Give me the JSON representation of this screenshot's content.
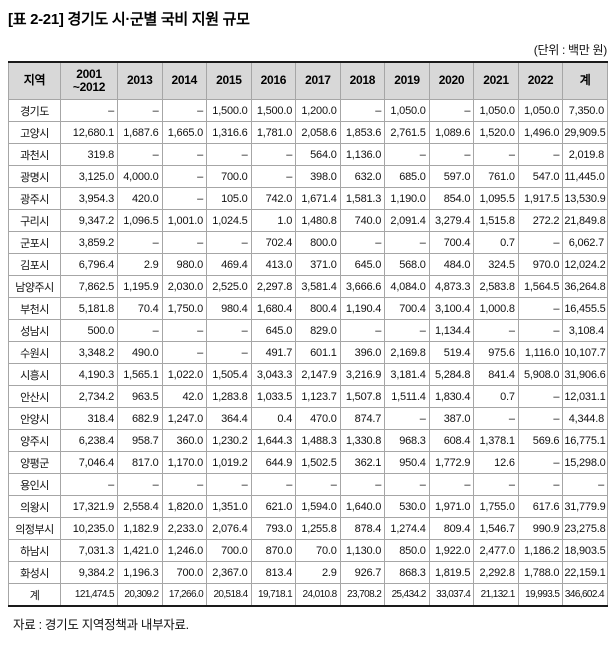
{
  "page": {
    "title": "[표 2-21] 경기도 시·군별 국비 지원 규모",
    "unit_note": "(단위 : 백만 원)",
    "source_note": "자료 : 경기도 지역정책과 내부자료."
  },
  "colors": {
    "header_bg": "#d8d8d8",
    "border_strong": "#1a1a1a",
    "border_light": "#a6a6a6",
    "text": "#111111"
  },
  "table": {
    "header": [
      "지역",
      "2001\n~2012",
      "2013",
      "2014",
      "2015",
      "2016",
      "2017",
      "2018",
      "2019",
      "2020",
      "2021",
      "2022",
      "계"
    ],
    "rows": [
      {
        "region": "경기도",
        "values": [
          "–",
          "–",
          "–",
          "1,500.0",
          "1,500.0",
          "1,200.0",
          "–",
          "1,050.0",
          "–",
          "1,050.0",
          "1,050.0",
          "7,350.0"
        ]
      },
      {
        "region": "고양시",
        "values": [
          "12,680.1",
          "1,687.6",
          "1,665.0",
          "1,316.6",
          "1,781.0",
          "2,058.6",
          "1,853.6",
          "2,761.5",
          "1,089.6",
          "1,520.0",
          "1,496.0",
          "29,909.5"
        ]
      },
      {
        "region": "과천시",
        "values": [
          "319.8",
          "–",
          "–",
          "–",
          "–",
          "564.0",
          "1,136.0",
          "–",
          "–",
          "–",
          "–",
          "2,019.8"
        ]
      },
      {
        "region": "광명시",
        "values": [
          "3,125.0",
          "4,000.0",
          "–",
          "700.0",
          "–",
          "398.0",
          "632.0",
          "685.0",
          "597.0",
          "761.0",
          "547.0",
          "11,445.0"
        ]
      },
      {
        "region": "광주시",
        "values": [
          "3,954.3",
          "420.0",
          "–",
          "105.0",
          "742.0",
          "1,671.4",
          "1,581.3",
          "1,190.0",
          "854.0",
          "1,095.5",
          "1,917.5",
          "13,530.9"
        ]
      },
      {
        "region": "구리시",
        "values": [
          "9,347.2",
          "1,096.5",
          "1,001.0",
          "1,024.5",
          "1.0",
          "1,480.8",
          "740.0",
          "2,091.4",
          "3,279.4",
          "1,515.8",
          "272.2",
          "21,849.8"
        ]
      },
      {
        "region": "군포시",
        "values": [
          "3,859.2",
          "–",
          "–",
          "–",
          "702.4",
          "800.0",
          "–",
          "–",
          "700.4",
          "0.7",
          "–",
          "6,062.7"
        ]
      },
      {
        "region": "김포시",
        "values": [
          "6,796.4",
          "2.9",
          "980.0",
          "469.4",
          "413.0",
          "371.0",
          "645.0",
          "568.0",
          "484.0",
          "324.5",
          "970.0",
          "12,024.2"
        ]
      },
      {
        "region": "남양주시",
        "values": [
          "7,862.5",
          "1,195.9",
          "2,030.0",
          "2,525.0",
          "2,297.8",
          "3,581.4",
          "3,666.6",
          "4,084.0",
          "4,873.3",
          "2,583.8",
          "1,564.5",
          "36,264.8"
        ]
      },
      {
        "region": "부천시",
        "values": [
          "5,181.8",
          "70.4",
          "1,750.0",
          "980.4",
          "1,680.4",
          "800.4",
          "1,190.4",
          "700.4",
          "3,100.4",
          "1,000.8",
          "–",
          "16,455.5"
        ]
      },
      {
        "region": "성남시",
        "values": [
          "500.0",
          "–",
          "–",
          "–",
          "645.0",
          "829.0",
          "–",
          "–",
          "1,134.4",
          "–",
          "–",
          "3,108.4"
        ]
      },
      {
        "region": "수원시",
        "values": [
          "3,348.2",
          "490.0",
          "–",
          "–",
          "491.7",
          "601.1",
          "396.0",
          "2,169.8",
          "519.4",
          "975.6",
          "1,116.0",
          "10,107.7"
        ]
      },
      {
        "region": "시흥시",
        "values": [
          "4,190.3",
          "1,565.1",
          "1,022.0",
          "1,505.4",
          "3,043.3",
          "2,147.9",
          "3,216.9",
          "3,181.4",
          "5,284.8",
          "841.4",
          "5,908.0",
          "31,906.6"
        ]
      },
      {
        "region": "안산시",
        "values": [
          "2,734.2",
          "963.5",
          "42.0",
          "1,283.8",
          "1,033.5",
          "1,123.7",
          "1,507.8",
          "1,511.4",
          "1,830.4",
          "0.7",
          "–",
          "12,031.1"
        ]
      },
      {
        "region": "안양시",
        "values": [
          "318.4",
          "682.9",
          "1,247.0",
          "364.4",
          "0.4",
          "470.0",
          "874.7",
          "–",
          "387.0",
          "–",
          "–",
          "4,344.8"
        ]
      },
      {
        "region": "양주시",
        "values": [
          "6,238.4",
          "958.7",
          "360.0",
          "1,230.2",
          "1,644.3",
          "1,488.3",
          "1,330.8",
          "968.3",
          "608.4",
          "1,378.1",
          "569.6",
          "16,775.1"
        ]
      },
      {
        "region": "양평군",
        "values": [
          "7,046.4",
          "817.0",
          "1,170.0",
          "1,019.2",
          "644.9",
          "1,502.5",
          "362.1",
          "950.4",
          "1,772.9",
          "12.6",
          "–",
          "15,298.0"
        ]
      },
      {
        "region": "용인시",
        "values": [
          "–",
          "–",
          "–",
          "–",
          "–",
          "–",
          "–",
          "–",
          "–",
          "–",
          "–",
          "–"
        ]
      },
      {
        "region": "의왕시",
        "values": [
          "17,321.9",
          "2,558.4",
          "1,820.0",
          "1,351.0",
          "621.0",
          "1,594.0",
          "1,640.0",
          "530.0",
          "1,971.0",
          "1,755.0",
          "617.6",
          "31,779.9"
        ]
      },
      {
        "region": "의정부시",
        "values": [
          "10,235.0",
          "1,182.9",
          "2,233.0",
          "2,076.4",
          "793.0",
          "1,255.8",
          "878.4",
          "1,274.4",
          "809.4",
          "1,546.7",
          "990.9",
          "23,275.8"
        ]
      },
      {
        "region": "하남시",
        "values": [
          "7,031.3",
          "1,421.0",
          "1,246.0",
          "700.0",
          "870.0",
          "70.0",
          "1,130.0",
          "850.0",
          "1,922.0",
          "2,477.0",
          "1,186.2",
          "18,903.5"
        ]
      },
      {
        "region": "화성시",
        "values": [
          "9,384.2",
          "1,196.3",
          "700.0",
          "2,367.0",
          "813.4",
          "2.9",
          "926.7",
          "868.3",
          "1,819.5",
          "2,292.8",
          "1,788.0",
          "22,159.1"
        ]
      }
    ],
    "total_row": {
      "region": "계",
      "values": [
        "121,474.5",
        "20,309.2",
        "17,266.0",
        "20,518.4",
        "19,718.1",
        "24,010.8",
        "23,708.2",
        "25,434.2",
        "33,037.4",
        "21,132.1",
        "19,993.5",
        "346,602.4"
      ]
    }
  }
}
